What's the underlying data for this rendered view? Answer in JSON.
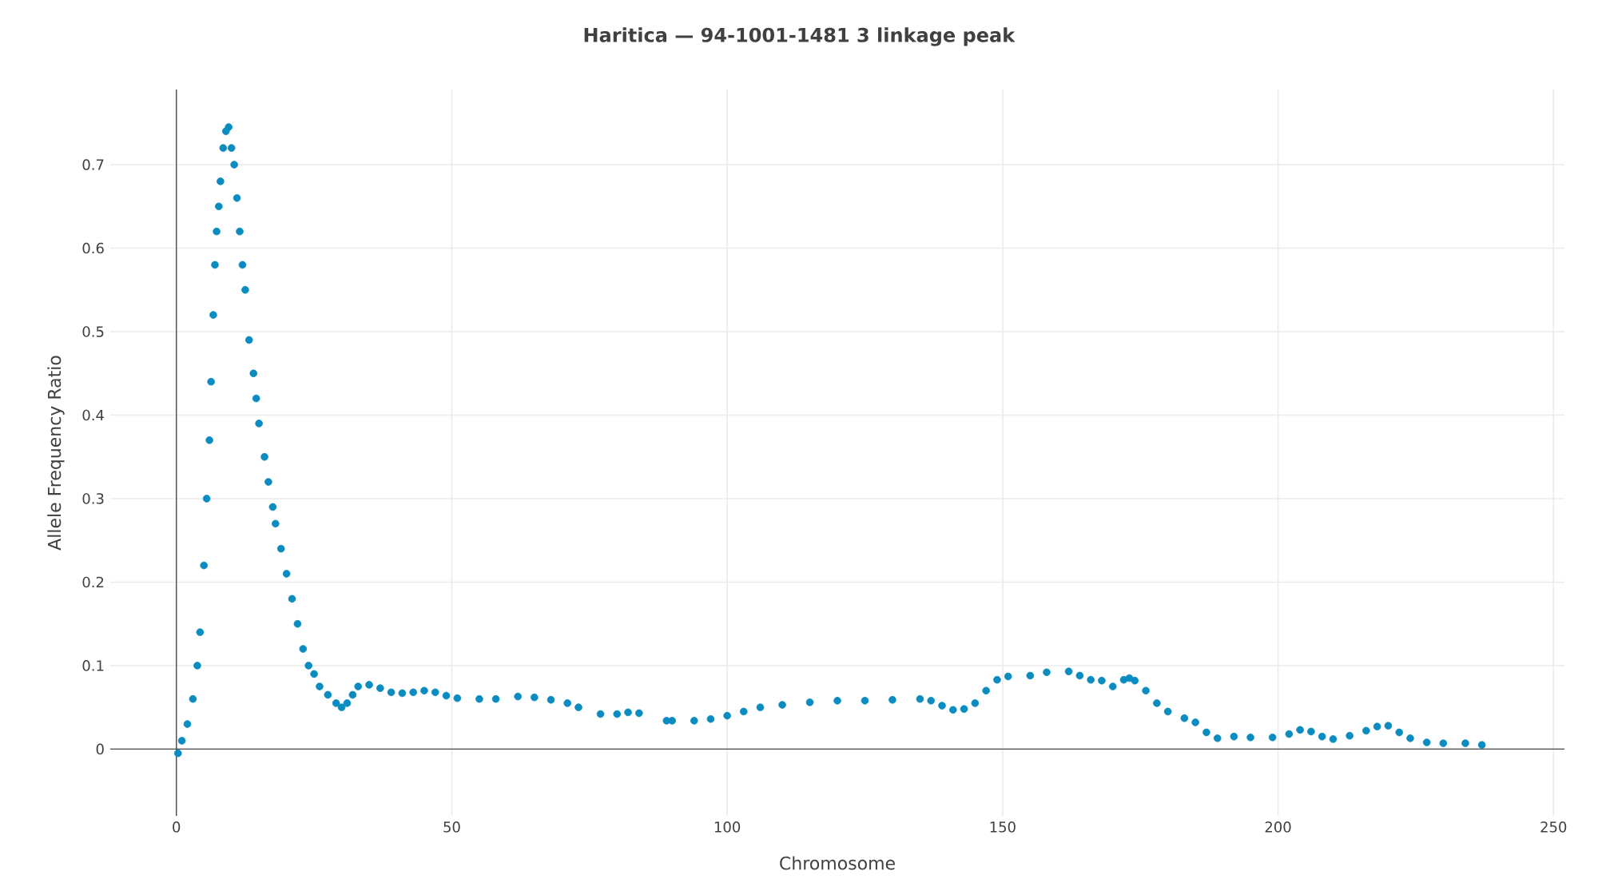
{
  "chart_data": {
    "type": "scatter",
    "title": "**Haritica — 94-1001-1481 3 linkage peak**",
    "xlabel": "Chromosome",
    "ylabel": "Allele Frequency Ratio",
    "xlim": [
      -12,
      252
    ],
    "xticks": [
      0,
      50,
      100,
      150,
      200,
      250
    ],
    "ylim": [
      -0.08,
      0.79
    ],
    "yticks": [
      0,
      0.1,
      0.2,
      0.3,
      0.4,
      0.5,
      0.6,
      0.7
    ],
    "grid": true,
    "marker": "circle",
    "series": [
      {
        "color": "#0a8cc0",
        "x": [
          0.3,
          1,
          2,
          3,
          3.8,
          4.3,
          5,
          5.5,
          6,
          6.3,
          6.7,
          7,
          7.3,
          7.7,
          8,
          8.5,
          9,
          9.5,
          10,
          10.5,
          11,
          11.5,
          12,
          12.5,
          13.2,
          14,
          14.5,
          15,
          16,
          16.7,
          17.5,
          18,
          19,
          20,
          21,
          22,
          23,
          24,
          25,
          26,
          27.5,
          29,
          30,
          31,
          32,
          33,
          35,
          37,
          39,
          41,
          43,
          45,
          47,
          49,
          51,
          55,
          58,
          62,
          65,
          68,
          71,
          73,
          77,
          80,
          82,
          84,
          89,
          90,
          94,
          97,
          100,
          103,
          106,
          110,
          115,
          120,
          125,
          130,
          135,
          137,
          139,
          141,
          143,
          145,
          147,
          149,
          151,
          155,
          158,
          162,
          164,
          166,
          168,
          170,
          172,
          173,
          174,
          176,
          178,
          180,
          183,
          185,
          187,
          189,
          192,
          195,
          199,
          202,
          204,
          206,
          208,
          210,
          213,
          216,
          218,
          220,
          222,
          224,
          227,
          230,
          234,
          237
        ],
        "values": [
          -0.005,
          0.01,
          0.03,
          0.06,
          0.1,
          0.14,
          0.22,
          0.3,
          0.37,
          0.44,
          0.52,
          0.58,
          0.62,
          0.65,
          0.68,
          0.72,
          0.74,
          0.745,
          0.72,
          0.7,
          0.66,
          0.62,
          0.58,
          0.55,
          0.49,
          0.45,
          0.42,
          0.39,
          0.35,
          0.32,
          0.29,
          0.27,
          0.24,
          0.21,
          0.18,
          0.15,
          0.12,
          0.1,
          0.09,
          0.075,
          0.065,
          0.055,
          0.05,
          0.055,
          0.065,
          0.075,
          0.077,
          0.073,
          0.068,
          0.067,
          0.068,
          0.07,
          0.068,
          0.064,
          0.061,
          0.06,
          0.06,
          0.063,
          0.062,
          0.059,
          0.055,
          0.05,
          0.042,
          0.042,
          0.044,
          0.043,
          0.034,
          0.034,
          0.034,
          0.036,
          0.04,
          0.045,
          0.05,
          0.053,
          0.056,
          0.058,
          0.058,
          0.059,
          0.06,
          0.058,
          0.052,
          0.047,
          0.048,
          0.055,
          0.07,
          0.083,
          0.087,
          0.088,
          0.092,
          0.093,
          0.088,
          0.083,
          0.082,
          0.075,
          0.083,
          0.085,
          0.082,
          0.07,
          0.055,
          0.045,
          0.037,
          0.032,
          0.02,
          0.013,
          0.015,
          0.014,
          0.014,
          0.018,
          0.023,
          0.021,
          0.015,
          0.012,
          0.016,
          0.022,
          0.027,
          0.028,
          0.02,
          0.013,
          0.008,
          0.007,
          0.007,
          0.005
        ]
      }
    ]
  }
}
